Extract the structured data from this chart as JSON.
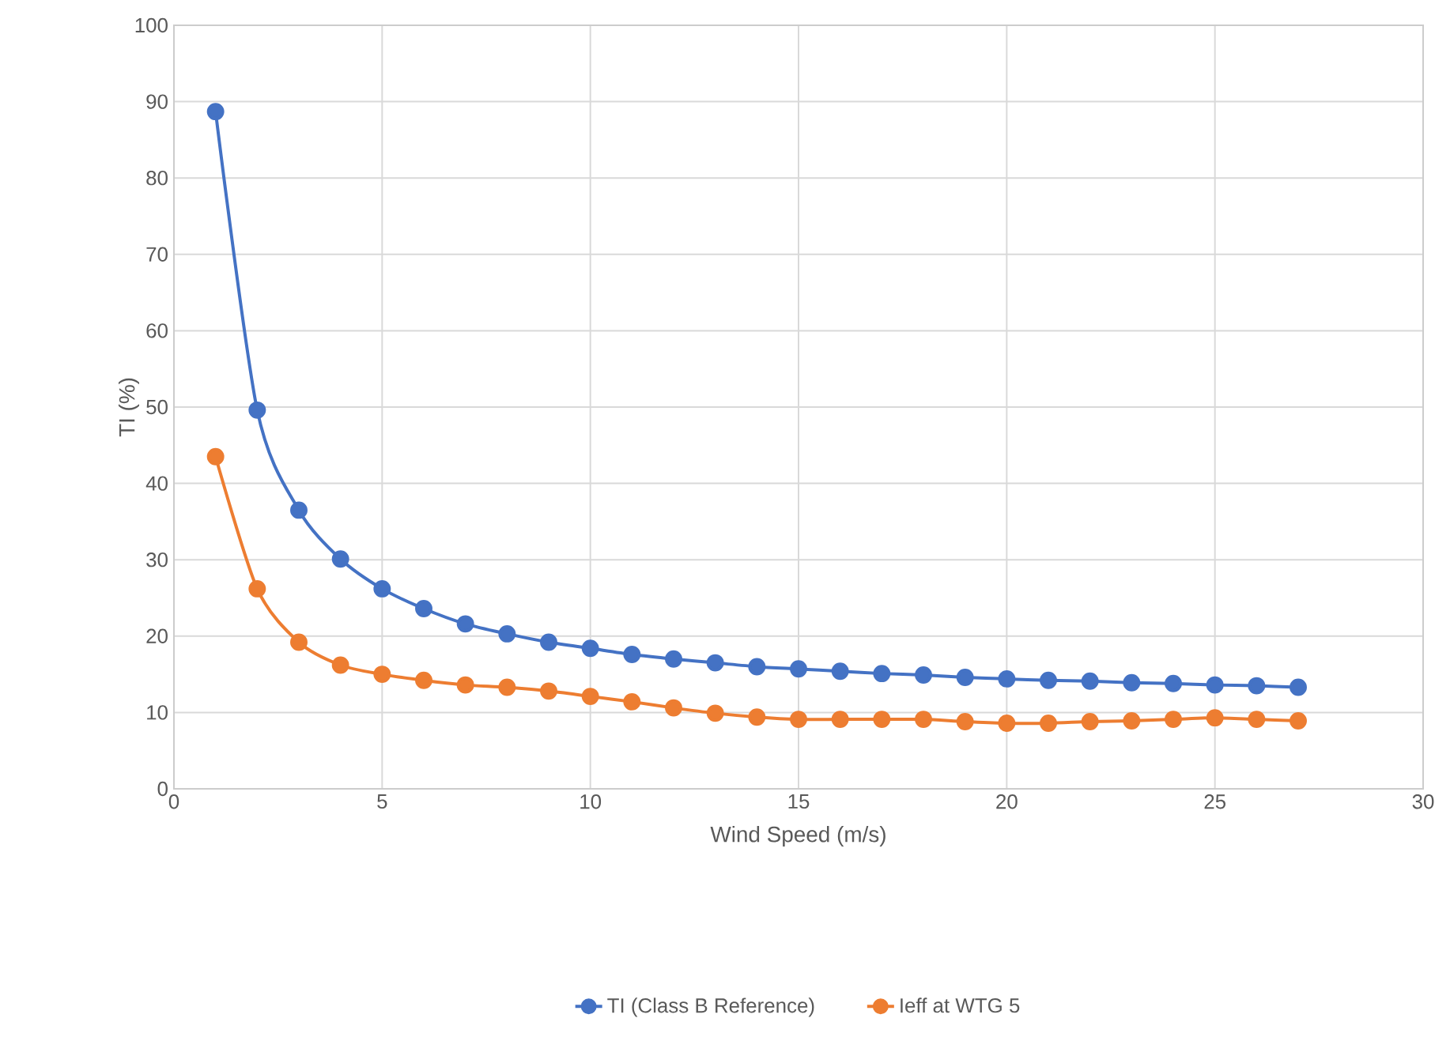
{
  "chart_data": {
    "type": "line",
    "xlabel": "Wind Speed (m/s)",
    "ylabel": "TI (%)",
    "x": [
      1,
      2,
      3,
      4,
      5,
      6,
      7,
      8,
      9,
      10,
      11,
      12,
      13,
      14,
      15,
      16,
      17,
      18,
      19,
      20,
      21,
      22,
      23,
      24,
      25,
      26,
      27
    ],
    "series": [
      {
        "name": "TI (Class B Reference)",
        "color": "#4472c4",
        "values": [
          88.7,
          49.6,
          36.5,
          30.1,
          26.2,
          23.6,
          21.6,
          20.3,
          19.2,
          18.4,
          17.6,
          17.0,
          16.5,
          16.0,
          15.7,
          15.4,
          15.1,
          14.9,
          14.6,
          14.4,
          14.2,
          14.1,
          13.9,
          13.8,
          13.6,
          13.5,
          13.3
        ]
      },
      {
        "name": "Ieff at WTG 5",
        "color": "#ed7d31",
        "values": [
          43.5,
          26.2,
          19.2,
          16.2,
          15.0,
          14.2,
          13.6,
          13.3,
          12.8,
          12.1,
          11.4,
          10.6,
          9.9,
          9.4,
          9.1,
          9.1,
          9.1,
          9.1,
          8.8,
          8.6,
          8.6,
          8.8,
          8.9,
          9.1,
          9.3,
          9.1,
          8.9
        ]
      }
    ],
    "xlim": [
      0,
      30
    ],
    "xticks": [
      0,
      5,
      10,
      15,
      20,
      25,
      30
    ],
    "ylim": [
      0,
      100
    ],
    "yticks": [
      0,
      10,
      20,
      30,
      40,
      50,
      60,
      70,
      80,
      90,
      100
    ],
    "grid": true,
    "legend": "bottom",
    "marker": "circle",
    "line_style": "solid"
  }
}
